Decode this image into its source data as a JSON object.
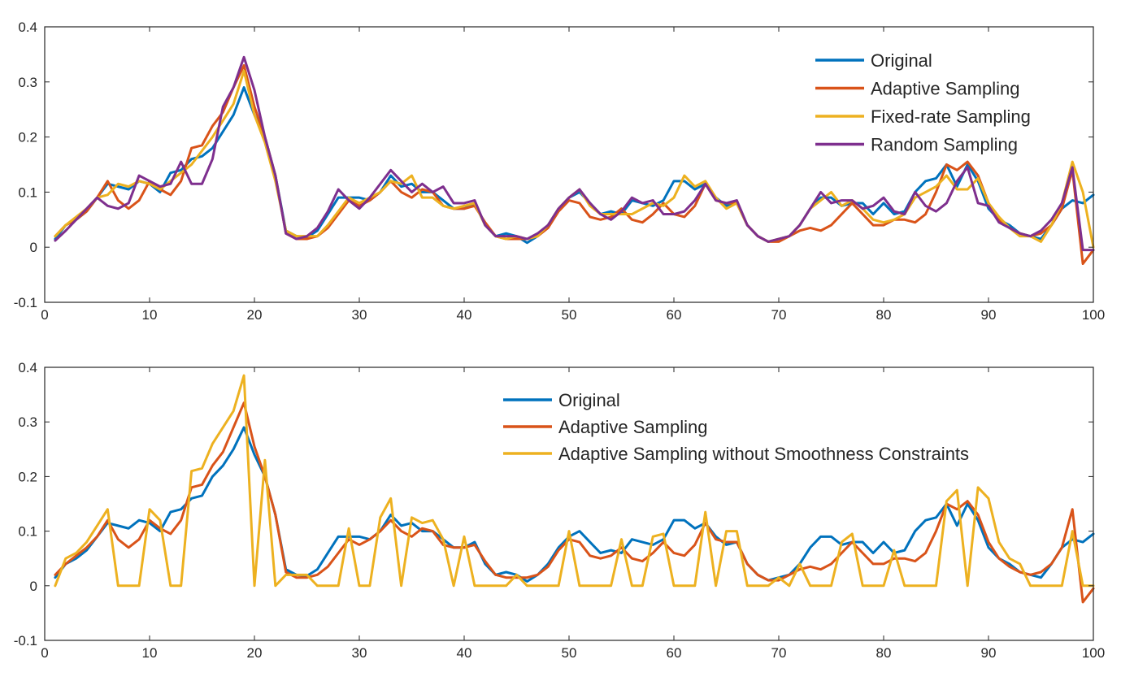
{
  "chart_data": [
    {
      "type": "line",
      "title": "",
      "xlabel": "",
      "ylabel": "",
      "xlim": [
        0,
        100
      ],
      "ylim": [
        -0.1,
        0.4
      ],
      "xticks": [
        0,
        10,
        20,
        30,
        40,
        50,
        60,
        70,
        80,
        90,
        100
      ],
      "yticks": [
        -0.1,
        0,
        0.1,
        0.2,
        0.3,
        0.4
      ],
      "xtick_labels": [
        "0",
        "10",
        "20",
        "30",
        "40",
        "50",
        "60",
        "70",
        "80",
        "90",
        "100"
      ],
      "ytick_labels": [
        "-0.1",
        "0",
        "0.1",
        "0.2",
        "0.3",
        "0.4"
      ],
      "legend_position": "top-right",
      "x": [
        1,
        2,
        3,
        4,
        5,
        6,
        7,
        8,
        9,
        10,
        11,
        12,
        13,
        14,
        15,
        16,
        17,
        18,
        19,
        20,
        21,
        22,
        23,
        24,
        25,
        26,
        27,
        28,
        29,
        30,
        31,
        32,
        33,
        34,
        35,
        36,
        37,
        38,
        39,
        40,
        41,
        42,
        43,
        44,
        45,
        46,
        47,
        48,
        49,
        50,
        51,
        52,
        53,
        54,
        55,
        56,
        57,
        58,
        59,
        60,
        61,
        62,
        63,
        64,
        65,
        66,
        67,
        68,
        69,
        70,
        71,
        72,
        73,
        74,
        75,
        76,
        77,
        78,
        79,
        80,
        81,
        82,
        83,
        84,
        85,
        86,
        87,
        88,
        89,
        90,
        91,
        92,
        93,
        94,
        95,
        96,
        97,
        98,
        99,
        100
      ],
      "series": [
        {
          "name": "Original",
          "color": "#0072BD",
          "values": [
            0.015,
            0.04,
            0.05,
            0.065,
            0.09,
            0.115,
            0.11,
            0.105,
            0.12,
            0.115,
            0.1,
            0.135,
            0.14,
            0.16,
            0.165,
            0.18,
            0.21,
            0.24,
            0.29,
            0.24,
            0.2,
            0.13,
            0.03,
            0.02,
            0.018,
            0.03,
            0.06,
            0.09,
            0.09,
            0.09,
            0.085,
            0.1,
            0.13,
            0.11,
            0.115,
            0.1,
            0.1,
            0.085,
            0.07,
            0.07,
            0.08,
            0.04,
            0.02,
            0.025,
            0.02,
            0.008,
            0.02,
            0.04,
            0.07,
            0.09,
            0.1,
            0.08,
            0.06,
            0.065,
            0.06,
            0.085,
            0.08,
            0.075,
            0.085,
            0.12,
            0.12,
            0.105,
            0.115,
            0.09,
            0.075,
            0.08,
            0.04,
            0.02,
            0.01,
            0.015,
            0.02,
            0.04,
            0.07,
            0.09,
            0.09,
            0.075,
            0.08,
            0.08,
            0.06,
            0.08,
            0.06,
            0.065,
            0.1,
            0.12,
            0.125,
            0.15,
            0.11,
            0.15,
            0.12,
            0.07,
            0.05,
            0.04,
            0.025,
            0.02,
            0.015,
            0.04,
            0.07,
            0.085,
            0.08,
            0.095
          ]
        },
        {
          "name": "Adaptive Sampling",
          "color": "#D95319",
          "values": [
            0.02,
            0.04,
            0.05,
            0.065,
            0.09,
            0.12,
            0.085,
            0.07,
            0.085,
            0.12,
            0.105,
            0.095,
            0.12,
            0.18,
            0.185,
            0.22,
            0.245,
            0.29,
            0.33,
            0.255,
            0.2,
            0.13,
            0.025,
            0.015,
            0.015,
            0.02,
            0.035,
            0.06,
            0.085,
            0.075,
            0.085,
            0.1,
            0.12,
            0.1,
            0.09,
            0.105,
            0.1,
            0.075,
            0.07,
            0.07,
            0.075,
            0.045,
            0.02,
            0.015,
            0.015,
            0.015,
            0.02,
            0.035,
            0.065,
            0.085,
            0.08,
            0.055,
            0.05,
            0.055,
            0.07,
            0.05,
            0.045,
            0.06,
            0.08,
            0.06,
            0.055,
            0.075,
            0.115,
            0.085,
            0.08,
            0.08,
            0.04,
            0.02,
            0.01,
            0.01,
            0.02,
            0.03,
            0.035,
            0.03,
            0.04,
            0.06,
            0.08,
            0.06,
            0.04,
            0.04,
            0.05,
            0.05,
            0.045,
            0.06,
            0.1,
            0.15,
            0.14,
            0.155,
            0.13,
            0.08,
            0.05,
            0.035,
            0.025,
            0.02,
            0.025,
            0.04,
            0.07,
            0.14,
            -0.03,
            -0.005
          ]
        },
        {
          "name": "Fixed-rate Sampling",
          "color": "#EDB120",
          "values": [
            0.02,
            0.04,
            0.055,
            0.07,
            0.09,
            0.095,
            0.115,
            0.11,
            0.12,
            0.115,
            0.105,
            0.12,
            0.135,
            0.15,
            0.175,
            0.2,
            0.23,
            0.26,
            0.32,
            0.24,
            0.19,
            0.12,
            0.03,
            0.02,
            0.02,
            0.02,
            0.04,
            0.065,
            0.09,
            0.08,
            0.09,
            0.1,
            0.12,
            0.115,
            0.13,
            0.09,
            0.09,
            0.075,
            0.07,
            0.075,
            0.08,
            0.04,
            0.02,
            0.015,
            0.02,
            0.015,
            0.02,
            0.04,
            0.07,
            0.09,
            0.105,
            0.075,
            0.06,
            0.06,
            0.06,
            0.06,
            0.07,
            0.08,
            0.075,
            0.09,
            0.13,
            0.11,
            0.12,
            0.09,
            0.07,
            0.08,
            0.04,
            0.02,
            0.01,
            0.015,
            0.02,
            0.04,
            0.07,
            0.085,
            0.1,
            0.075,
            0.085,
            0.07,
            0.05,
            0.045,
            0.05,
            0.06,
            0.09,
            0.1,
            0.11,
            0.13,
            0.105,
            0.105,
            0.125,
            0.08,
            0.055,
            0.035,
            0.02,
            0.02,
            0.01,
            0.04,
            0.08,
            0.155,
            0.1,
            0.0
          ]
        },
        {
          "name": "Random Sampling",
          "color": "#7E2F8E",
          "values": [
            0.012,
            0.03,
            0.05,
            0.07,
            0.09,
            0.075,
            0.07,
            0.08,
            0.13,
            0.12,
            0.11,
            0.115,
            0.155,
            0.115,
            0.115,
            0.16,
            0.255,
            0.29,
            0.345,
            0.285,
            0.2,
            0.13,
            0.025,
            0.015,
            0.02,
            0.035,
            0.065,
            0.105,
            0.085,
            0.07,
            0.09,
            0.115,
            0.14,
            0.12,
            0.1,
            0.115,
            0.1,
            0.11,
            0.08,
            0.08,
            0.085,
            0.04,
            0.02,
            0.02,
            0.02,
            0.015,
            0.025,
            0.04,
            0.07,
            0.09,
            0.105,
            0.08,
            0.06,
            0.05,
            0.065,
            0.09,
            0.08,
            0.085,
            0.06,
            0.06,
            0.065,
            0.085,
            0.115,
            0.085,
            0.08,
            0.085,
            0.04,
            0.02,
            0.01,
            0.015,
            0.02,
            0.04,
            0.07,
            0.1,
            0.08,
            0.085,
            0.085,
            0.07,
            0.075,
            0.09,
            0.065,
            0.06,
            0.1,
            0.075,
            0.065,
            0.08,
            0.12,
            0.145,
            0.08,
            0.075,
            0.045,
            0.035,
            0.025,
            0.02,
            0.03,
            0.05,
            0.08,
            0.145,
            -0.005,
            -0.005
          ]
        }
      ]
    },
    {
      "type": "line",
      "title": "",
      "xlabel": "",
      "ylabel": "",
      "xlim": [
        0,
        100
      ],
      "ylim": [
        -0.1,
        0.4
      ],
      "xticks": [
        0,
        10,
        20,
        30,
        40,
        50,
        60,
        70,
        80,
        90,
        100
      ],
      "yticks": [
        -0.1,
        0,
        0.1,
        0.2,
        0.3,
        0.4
      ],
      "xtick_labels": [
        "0",
        "10",
        "20",
        "30",
        "40",
        "50",
        "60",
        "70",
        "80",
        "90",
        "100"
      ],
      "ytick_labels": [
        "-0.1",
        "0",
        "0.1",
        "0.2",
        "0.3",
        "0.4"
      ],
      "legend_position": "top-right",
      "x": [
        1,
        2,
        3,
        4,
        5,
        6,
        7,
        8,
        9,
        10,
        11,
        12,
        13,
        14,
        15,
        16,
        17,
        18,
        19,
        20,
        21,
        22,
        23,
        24,
        25,
        26,
        27,
        28,
        29,
        30,
        31,
        32,
        33,
        34,
        35,
        36,
        37,
        38,
        39,
        40,
        41,
        42,
        43,
        44,
        45,
        46,
        47,
        48,
        49,
        50,
        51,
        52,
        53,
        54,
        55,
        56,
        57,
        58,
        59,
        60,
        61,
        62,
        63,
        64,
        65,
        66,
        67,
        68,
        69,
        70,
        71,
        72,
        73,
        74,
        75,
        76,
        77,
        78,
        79,
        80,
        81,
        82,
        83,
        84,
        85,
        86,
        87,
        88,
        89,
        90,
        91,
        92,
        93,
        94,
        95,
        96,
        97,
        98,
        99,
        100
      ],
      "series": [
        {
          "name": "Original",
          "color": "#0072BD",
          "values": [
            0.015,
            0.04,
            0.05,
            0.065,
            0.09,
            0.115,
            0.11,
            0.105,
            0.12,
            0.115,
            0.1,
            0.135,
            0.14,
            0.16,
            0.165,
            0.2,
            0.22,
            0.25,
            0.29,
            0.24,
            0.2,
            0.13,
            0.03,
            0.02,
            0.018,
            0.03,
            0.06,
            0.09,
            0.09,
            0.09,
            0.085,
            0.1,
            0.13,
            0.11,
            0.115,
            0.1,
            0.1,
            0.085,
            0.07,
            0.07,
            0.08,
            0.04,
            0.02,
            0.025,
            0.02,
            0.008,
            0.02,
            0.04,
            0.07,
            0.09,
            0.1,
            0.08,
            0.06,
            0.065,
            0.06,
            0.085,
            0.08,
            0.075,
            0.085,
            0.12,
            0.12,
            0.105,
            0.115,
            0.09,
            0.075,
            0.08,
            0.04,
            0.02,
            0.01,
            0.015,
            0.02,
            0.04,
            0.07,
            0.09,
            0.09,
            0.075,
            0.08,
            0.08,
            0.06,
            0.08,
            0.06,
            0.065,
            0.1,
            0.12,
            0.125,
            0.15,
            0.11,
            0.15,
            0.12,
            0.07,
            0.05,
            0.04,
            0.025,
            0.02,
            0.015,
            0.04,
            0.07,
            0.085,
            0.08,
            0.095
          ]
        },
        {
          "name": "Adaptive Sampling",
          "color": "#D95319",
          "values": [
            0.02,
            0.04,
            0.055,
            0.07,
            0.09,
            0.12,
            0.085,
            0.07,
            0.085,
            0.12,
            0.105,
            0.095,
            0.12,
            0.18,
            0.185,
            0.22,
            0.245,
            0.29,
            0.335,
            0.255,
            0.2,
            0.13,
            0.025,
            0.015,
            0.015,
            0.02,
            0.035,
            0.06,
            0.085,
            0.075,
            0.085,
            0.1,
            0.12,
            0.1,
            0.09,
            0.105,
            0.1,
            0.075,
            0.07,
            0.07,
            0.075,
            0.045,
            0.02,
            0.015,
            0.015,
            0.015,
            0.02,
            0.035,
            0.065,
            0.085,
            0.08,
            0.055,
            0.05,
            0.055,
            0.07,
            0.05,
            0.045,
            0.06,
            0.08,
            0.06,
            0.055,
            0.075,
            0.115,
            0.085,
            0.08,
            0.08,
            0.04,
            0.02,
            0.01,
            0.01,
            0.02,
            0.03,
            0.035,
            0.03,
            0.04,
            0.06,
            0.08,
            0.06,
            0.04,
            0.04,
            0.05,
            0.05,
            0.045,
            0.06,
            0.1,
            0.15,
            0.14,
            0.155,
            0.13,
            0.08,
            0.05,
            0.035,
            0.025,
            0.02,
            0.025,
            0.04,
            0.07,
            0.14,
            -0.03,
            -0.005
          ]
        },
        {
          "name": "Adaptive Sampling without Smoothness Constraints",
          "color": "#EDB120",
          "values": [
            0.0,
            0.05,
            0.06,
            0.08,
            0.11,
            0.14,
            0.0,
            0.0,
            0.0,
            0.14,
            0.12,
            0.0,
            0.0,
            0.21,
            0.215,
            0.26,
            0.29,
            0.32,
            0.385,
            0.0,
            0.23,
            0.0,
            0.02,
            0.02,
            0.02,
            0.0,
            0.0,
            0.0,
            0.105,
            0.0,
            0.0,
            0.125,
            0.16,
            0.0,
            0.125,
            0.115,
            0.12,
            0.085,
            0.0,
            0.09,
            0.0,
            0.0,
            0.0,
            0.0,
            0.02,
            0.0,
            0.0,
            0.0,
            0.0,
            0.1,
            0.0,
            0.0,
            0.0,
            0.0,
            0.085,
            0.0,
            0.0,
            0.09,
            0.095,
            0.0,
            0.0,
            0.0,
            0.135,
            0.0,
            0.1,
            0.1,
            0.0,
            0.0,
            0.0,
            0.015,
            0.0,
            0.04,
            0.0,
            0.0,
            0.0,
            0.08,
            0.095,
            0.0,
            0.0,
            0.0,
            0.065,
            0.0,
            0.0,
            0.0,
            0.0,
            0.155,
            0.175,
            0.0,
            0.18,
            0.16,
            0.08,
            0.05,
            0.04,
            0.0,
            0.0,
            0.0,
            0.0,
            0.1,
            0.0,
            0.0
          ]
        }
      ]
    }
  ]
}
